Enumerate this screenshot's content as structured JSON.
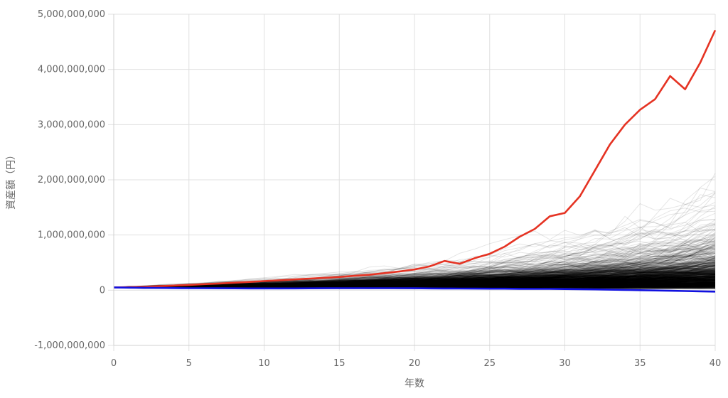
{
  "chart_data": {
    "type": "line",
    "xlabel": "年数",
    "ylabel": "資産額（円）",
    "xlim": [
      0,
      40
    ],
    "ylim": [
      -1000000000,
      5000000000
    ],
    "x_ticks": [
      "0",
      "5",
      "10",
      "15",
      "20",
      "25",
      "30",
      "35",
      "40"
    ],
    "y_ticks": [
      "5,000,000,000",
      "4,000,000,000",
      "3,000,000,000",
      "2,000,000,000",
      "1,000,000,000",
      "0",
      "-1,000,000,000"
    ],
    "y_tick_values": [
      5000000000,
      4000000000,
      3000000000,
      2000000000,
      1000000000,
      0,
      -1000000000
    ],
    "x_tick_values": [
      0,
      5,
      10,
      15,
      20,
      25,
      30,
      35,
      40
    ],
    "grid": true,
    "legend": "none",
    "colors": {
      "max_series": "#e53323",
      "min_series": "#1010e0",
      "simulations": "#000000",
      "grid": "#e0e0e0"
    },
    "simulation_count": 1000,
    "series": [
      {
        "role": "max",
        "x": [
          0,
          1,
          2,
          3,
          4,
          5,
          6,
          7,
          8,
          9,
          10,
          11,
          12,
          13,
          14,
          15,
          16,
          17,
          18,
          19,
          20,
          21,
          22,
          23,
          24,
          25,
          26,
          27,
          28,
          29,
          30,
          31,
          32,
          33,
          34,
          35,
          36,
          37,
          38,
          39,
          40
        ],
        "values": [
          50000000,
          55000000,
          62000000,
          72000000,
          84000000,
          96000000,
          110000000,
          122000000,
          135000000,
          150000000,
          165000000,
          180000000,
          195000000,
          210000000,
          225000000,
          240000000,
          260000000,
          280000000,
          310000000,
          340000000,
          375000000,
          430000000,
          530000000,
          480000000,
          580000000,
          660000000,
          790000000,
          970000000,
          1110000000,
          1340000000,
          1400000000,
          1700000000,
          2170000000,
          2640000000,
          3000000000,
          3270000000,
          3460000000,
          3880000000,
          3640000000,
          4120000000,
          4710000000
        ]
      },
      {
        "role": "min",
        "x": [
          0,
          1,
          2,
          3,
          4,
          5,
          6,
          7,
          8,
          9,
          10,
          11,
          12,
          13,
          14,
          15,
          16,
          17,
          18,
          19,
          20,
          21,
          22,
          23,
          24,
          25,
          26,
          27,
          28,
          29,
          30,
          31,
          32,
          33,
          34,
          35,
          36,
          37,
          38,
          39,
          40
        ],
        "values": [
          50000000,
          47000000,
          44000000,
          41000000,
          39000000,
          37000000,
          36000000,
          35000000,
          34000000,
          33000000,
          33000000,
          33000000,
          33000000,
          34000000,
          35000000,
          36000000,
          37000000,
          37000000,
          37000000,
          36000000,
          35000000,
          33000000,
          31000000,
          30000000,
          29000000,
          28000000,
          27000000,
          25000000,
          24000000,
          23000000,
          21000000,
          18000000,
          14000000,
          10000000,
          5000000,
          0,
          -5000000,
          -10000000,
          -15000000,
          -20000000,
          -25000000
        ]
      }
    ]
  }
}
